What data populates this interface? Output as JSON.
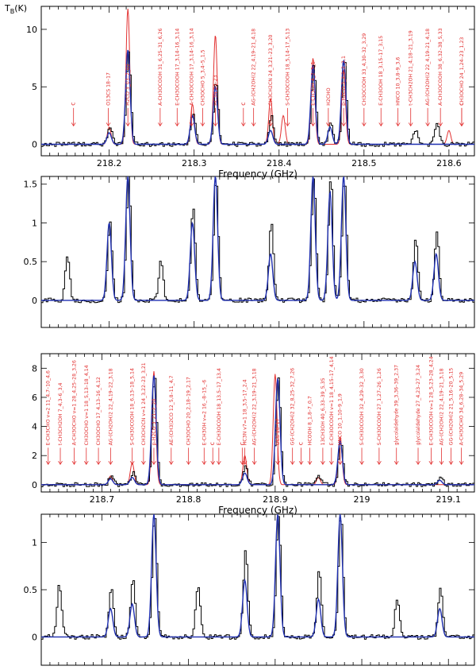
{
  "figure": {
    "y_label_temperature": "T",
    "y_label_temperature_sub": "B",
    "y_label_temperature_unit": "(K)",
    "colors": {
      "observed": "#000000",
      "model_blue": "#1f2fb0",
      "model_red": "#e23030",
      "annotation": "#e23030"
    }
  },
  "chart_data": [
    {
      "type": "line",
      "panel": "top-1",
      "xlabel": "Frequency (GHz)",
      "ylabel": "T_B(K)",
      "xlim": [
        218.12,
        218.63
      ],
      "ylim": [
        -1,
        12
      ],
      "x_ticks": [
        218.2,
        218.3,
        218.4,
        218.5,
        218.6
      ],
      "y_ticks": [
        0,
        5,
        10
      ],
      "series": [
        {
          "color": "black",
          "peaks": [
            [
              218.222,
              8.2
            ],
            [
              218.325,
              5.5
            ],
            [
              218.44,
              7.0
            ],
            [
              218.476,
              7.5
            ],
            [
              218.46,
              2.0
            ],
            [
              218.298,
              2.8
            ],
            [
              218.2,
              1.5
            ],
            [
              218.39,
              2.5
            ],
            [
              218.56,
              1.2
            ],
            [
              218.585,
              1.8
            ]
          ]
        },
        {
          "color": "blue",
          "peaks": [
            [
              218.222,
              8.2
            ],
            [
              218.325,
              5.0
            ],
            [
              218.44,
              6.8
            ],
            [
              218.476,
              7.3
            ],
            [
              218.46,
              1.5
            ],
            [
              218.298,
              2.5
            ],
            [
              218.2,
              1.0
            ],
            [
              218.39,
              1.2
            ]
          ]
        },
        {
          "color": "red",
          "peaks": [
            [
              218.222,
              11.8
            ],
            [
              218.325,
              9.5
            ],
            [
              218.44,
              7.5
            ],
            [
              218.476,
              6.5
            ],
            [
              218.39,
              4.0
            ],
            [
              218.405,
              2.5
            ],
            [
              218.298,
              3.5
            ],
            [
              218.2,
              1.5
            ],
            [
              218.6,
              1.2
            ]
          ]
        }
      ],
      "annotations": [
        {
          "text": "H2CO 3_03–2_02",
          "x": 218.222
        },
        {
          "text": "O13CS 18–17",
          "x": 218.199
        },
        {
          "text": "A-CH3OCOOH 31_6,25–31_6,26",
          "x": 218.26
        },
        {
          "text": "E-CH3OCOOH 17_3,14–16_3,14",
          "x": 218.28
        },
        {
          "text": "A-CH3OCOOH 17_3,14–16_3,14",
          "x": 218.297
        },
        {
          "text": "CH3OCHO 5_3,4–5_1,5",
          "x": 218.31
        },
        {
          "text": "HC3N 24–23",
          "x": 218.325
        },
        {
          "text": "AG-(CH2OH)2 22_4,19–21_4,18",
          "x": 218.37
        },
        {
          "text": "CH3CH2CN 24_3,21–23_3,20",
          "x": 218.39
        },
        {
          "text": "S-CH3OCOOH 18_5,14–17_5,13",
          "x": 218.41
        },
        {
          "text": "E-CH3OH 4_2–3_1",
          "x": 218.44
        },
        {
          "text": "H2CHO",
          "x": 218.458
        },
        {
          "text": "p-H2CO 3_2,2–2_2,1",
          "x": 218.476
        },
        {
          "text": "CH3OCOOH 33_4,30–32_3,29",
          "x": 218.5
        },
        {
          "text": "E-CH3OOH 18_3,15–17_3,15",
          "x": 218.52
        },
        {
          "text": "HNCO 10_3,8–9_3,6",
          "x": 218.54
        },
        {
          "text": "t-CH3CH2OH 21_4,18–21_3,19",
          "x": 218.555
        },
        {
          "text": "AG-(CH2OH)2 22_4,19–21_4,18",
          "x": 218.575
        },
        {
          "text": "A-CH3OCOOH 38_6,32–38_5,33",
          "x": 218.59
        },
        {
          "text": "CH3OCHO 24_1,24–23_1,23",
          "x": 218.615
        },
        {
          "text": "c",
          "x": 218.158
        },
        {
          "text": "c",
          "x": 218.358
        },
        {
          "text": "c",
          "x": 218.615
        }
      ]
    },
    {
      "type": "line",
      "panel": "top-2",
      "xlim": [
        218.12,
        218.63
      ],
      "ylim": [
        -0.35,
        1.6
      ],
      "y_ticks": [
        0,
        0.5,
        1,
        1.5
      ],
      "series": [
        {
          "color": "black",
          "peaks": [
            [
              218.2,
              1.0
            ],
            [
              218.222,
              1.6
            ],
            [
              218.325,
              1.6
            ],
            [
              218.44,
              1.6
            ],
            [
              218.46,
              1.6
            ],
            [
              218.476,
              1.6
            ],
            [
              218.298,
              1.2
            ],
            [
              218.39,
              1.0
            ],
            [
              218.56,
              0.8
            ],
            [
              218.585,
              0.9
            ],
            [
              218.15,
              0.6
            ],
            [
              218.26,
              0.5
            ]
          ]
        },
        {
          "color": "blue",
          "peaks": [
            [
              218.2,
              1.0
            ],
            [
              218.222,
              1.6
            ],
            [
              218.325,
              1.6
            ],
            [
              218.44,
              1.6
            ],
            [
              218.46,
              1.4
            ],
            [
              218.476,
              1.6
            ],
            [
              218.298,
              1.0
            ],
            [
              218.39,
              0.6
            ],
            [
              218.56,
              0.5
            ],
            [
              218.585,
              0.6
            ]
          ]
        }
      ]
    },
    {
      "type": "line",
      "panel": "bottom-1",
      "xlabel": "Frequency (GHz)",
      "xlim": [
        218.63,
        219.13
      ],
      "ylim": [
        -0.5,
        9
      ],
      "x_ticks": [
        218.7,
        218.8,
        218.9,
        219.0,
        219.1
      ],
      "y_ticks": [
        0,
        2,
        4,
        6,
        8
      ],
      "series": [
        {
          "color": "black",
          "peaks": [
            [
              218.76,
              7.5
            ],
            [
              218.903,
              7.3
            ],
            [
              218.975,
              3.0
            ],
            [
              218.865,
              1.2
            ],
            [
              218.71,
              0.6
            ],
            [
              218.735,
              0.8
            ],
            [
              219.09,
              0.5
            ],
            [
              218.95,
              0.6
            ]
          ]
        },
        {
          "color": "blue",
          "peaks": [
            [
              218.76,
              7.5
            ],
            [
              218.903,
              7.3
            ],
            [
              218.975,
              3.0
            ],
            [
              218.865,
              0.8
            ],
            [
              218.71,
              0.4
            ],
            [
              218.735,
              0.5
            ],
            [
              219.09,
              0.3
            ]
          ]
        },
        {
          "color": "red",
          "peaks": [
            [
              218.76,
              7.8
            ],
            [
              218.9,
              7.6
            ],
            [
              218.975,
              3.3
            ],
            [
              218.865,
              2.0
            ],
            [
              218.735,
              1.5
            ],
            [
              218.71,
              0.6
            ],
            [
              218.95,
              0.5
            ]
          ]
        }
      ],
      "annotations": [
        {
          "text": "p-H2CO 3_21–2_20",
          "x": 218.76
        },
        {
          "text": "OCS 18–17",
          "x": 218.903
        },
        {
          "text": "E-CH3CHO v=2 11_4,7–10_4,6",
          "x": 218.638
        },
        {
          "text": "t-CH3CH2OH 7_4,3–6_3,4",
          "x": 218.652
        },
        {
          "text": "A-CH3OCHO v=1 28_4,25–28_3,26",
          "x": 218.668
        },
        {
          "text": "CH3OCHO v=1 18_5,13–18_4,14",
          "x": 218.682
        },
        {
          "text": "CH3OCHO 17_4,13–16_4,12",
          "x": 218.696
        },
        {
          "text": "AG-(CH2OH)2 22_4,19–22_3,18",
          "x": 218.71
        },
        {
          "text": "S-CH3OCOOH 18_6,13–18_5,14",
          "x": 218.735
        },
        {
          "text": "CH3CH2CN v=1 24_3,22–23_3,21",
          "x": 218.748
        },
        {
          "text": "AE-(CH3)2CO 12_5,8–11_4,7",
          "x": 218.78
        },
        {
          "text": "CH3OCHO 20_2,18–19_2,17",
          "x": 218.8
        },
        {
          "text": "E-CH3OH v=2 16_-8–15_-6",
          "x": 218.818
        },
        {
          "text": "E-CH3OCOOH 18_13,5–17_13,4",
          "x": 218.835
        },
        {
          "text": "HC3N v7=1 18_3,5–17_2,4",
          "x": 218.865
        },
        {
          "text": "AG-(CH2OH)2 22_3,19–21_3,18",
          "x": 218.876
        },
        {
          "text": "GG-(CH2OH)2 32_8,25–32_7,26",
          "x": 218.92
        },
        {
          "text": "HCOOH 8_1,8–7_0,7",
          "x": 218.94
        },
        {
          "text": "13CH3OH 40_6,33–39_5,35",
          "x": 218.955
        },
        {
          "text": "E-CH3OCOOH v=1 18_4,15–17_4,14",
          "x": 218.965
        },
        {
          "text": "HNCO 10_1,10–9_1,9",
          "x": 218.975
        },
        {
          "text": "S-CH3OCOOH 32_4,29–32_3,30",
          "x": 219.0
        },
        {
          "text": "S-CH3OCOOH 27_1,27–26_1,26",
          "x": 219.02
        },
        {
          "text": "glycolaldehyde 39_3,36–39_2,37",
          "x": 219.04
        },
        {
          "text": "glycolaldehyde 27_4,23–27_3,24",
          "x": 219.065
        },
        {
          "text": "E-CH3OCOOH v=1 28_5,23–28_4,24",
          "x": 219.08
        },
        {
          "text": "AG-(CH2OH)2 22_4,19–21_3,18",
          "x": 219.092
        },
        {
          "text": "GG-(CH2OH)2 21_5,16–20_5,15",
          "x": 219.103
        },
        {
          "text": "A-CH3OCHO 34_6,28–34_5,29",
          "x": 219.115
        },
        {
          "text": "c",
          "x": 218.828
        },
        {
          "text": "c",
          "x": 218.862
        },
        {
          "text": "c",
          "x": 218.93
        }
      ]
    },
    {
      "type": "line",
      "panel": "bottom-2",
      "xlim": [
        218.63,
        219.13
      ],
      "ylim": [
        -0.3,
        1.3
      ],
      "y_ticks": [
        0,
        0.5,
        1
      ],
      "series": [
        {
          "color": "black",
          "peaks": [
            [
              218.76,
              1.3
            ],
            [
              218.903,
              1.3
            ],
            [
              218.975,
              1.3
            ],
            [
              218.865,
              0.9
            ],
            [
              218.71,
              0.5
            ],
            [
              218.735,
              0.6
            ],
            [
              218.65,
              0.55
            ],
            [
              218.81,
              0.55
            ],
            [
              219.09,
              0.5
            ],
            [
              218.95,
              0.7
            ],
            [
              219.04,
              0.4
            ]
          ]
        },
        {
          "color": "blue",
          "peaks": [
            [
              218.76,
              1.3
            ],
            [
              218.903,
              1.3
            ],
            [
              218.975,
              1.3
            ],
            [
              218.865,
              0.6
            ],
            [
              218.71,
              0.3
            ],
            [
              218.735,
              0.35
            ],
            [
              218.95,
              0.4
            ],
            [
              219.09,
              0.3
            ]
          ]
        }
      ]
    }
  ]
}
